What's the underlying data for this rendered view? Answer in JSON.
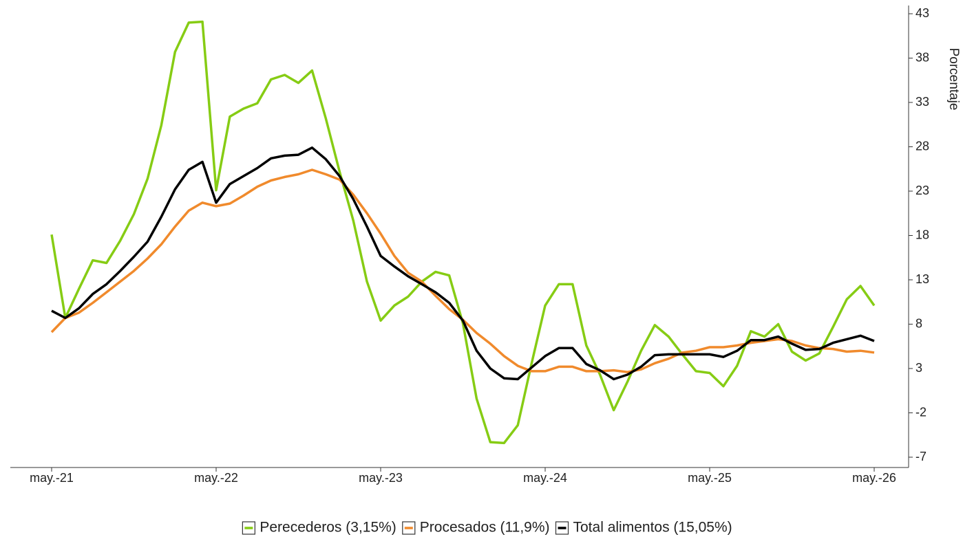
{
  "chart_data": {
    "type": "line",
    "y_axis_label": "Porcentaje",
    "categories": [
      "may.-21",
      null,
      null,
      null,
      null,
      null,
      null,
      null,
      null,
      null,
      null,
      null,
      "may.-22",
      null,
      null,
      null,
      null,
      null,
      null,
      null,
      null,
      null,
      null,
      null,
      "may.-23",
      null,
      null,
      null,
      null,
      null,
      null,
      null,
      null,
      null,
      null,
      null,
      "may.-24",
      null,
      null,
      null,
      null,
      null,
      null,
      null,
      null,
      null,
      null,
      null,
      "may.-25",
      null,
      null,
      null,
      null,
      null,
      null,
      null,
      null,
      null,
      null,
      null,
      "may.-26"
    ],
    "series": [
      {
        "name": "Perecederos (3,15%)",
        "color": "#86cc14",
        "values": [
          18.1,
          8.7,
          12.0,
          15.2,
          14.9,
          17.4,
          20.4,
          24.4,
          30.4,
          38.7,
          42.0,
          42.1,
          23.1,
          31.4,
          32.3,
          32.9,
          35.6,
          36.1,
          35.2,
          36.6,
          31.2,
          25.2,
          19.7,
          12.8,
          8.4,
          10.1,
          11.1,
          12.8,
          13.9,
          13.5,
          8.1,
          -0.4,
          -5.3,
          -5.4,
          -3.4,
          3.5,
          10.1,
          12.5,
          12.5,
          5.6,
          2.3,
          -1.7,
          1.5,
          5.0,
          7.9,
          6.6,
          4.6,
          2.7,
          2.5,
          1.0,
          3.3,
          7.2,
          6.6,
          8.0,
          4.9,
          3.9,
          4.7,
          7.7,
          10.8,
          12.3,
          10.1
        ]
      },
      {
        "name": "Procesados (11,9%)",
        "color": "#f08a2c",
        "values": [
          7.1,
          8.7,
          9.3,
          10.4,
          11.6,
          12.8,
          14.0,
          15.4,
          17.0,
          19.0,
          20.8,
          21.7,
          21.3,
          21.6,
          22.5,
          23.5,
          24.2,
          24.6,
          24.9,
          25.4,
          24.9,
          24.3,
          22.6,
          20.5,
          18.2,
          15.7,
          13.8,
          12.8,
          11.2,
          9.7,
          8.5,
          7.0,
          5.8,
          4.4,
          3.3,
          2.7,
          2.7,
          3.2,
          3.2,
          2.7,
          2.7,
          2.8,
          2.6,
          2.9,
          3.6,
          4.1,
          4.8,
          5.0,
          5.4,
          5.4,
          5.6,
          5.9,
          6.1,
          6.3,
          6.1,
          5.6,
          5.3,
          5.2,
          4.9,
          5.0,
          4.8
        ]
      },
      {
        "name": "Total alimentos (15,05%)",
        "color": "#000000",
        "values": [
          9.5,
          8.7,
          9.8,
          11.4,
          12.5,
          14.0,
          15.6,
          17.3,
          20.1,
          23.2,
          25.4,
          26.3,
          21.7,
          23.8,
          24.7,
          25.6,
          26.7,
          27.0,
          27.1,
          27.9,
          26.6,
          24.7,
          22.1,
          19.0,
          15.7,
          14.5,
          13.4,
          12.5,
          11.6,
          10.4,
          8.4,
          5.0,
          3.0,
          1.9,
          1.8,
          3.1,
          4.4,
          5.3,
          5.3,
          3.5,
          2.8,
          1.8,
          2.3,
          3.2,
          4.5,
          4.6,
          4.6,
          4.6,
          4.6,
          4.3,
          5.0,
          6.2,
          6.2,
          6.6,
          5.8,
          5.1,
          5.2,
          5.9,
          6.3,
          6.7,
          6.1
        ]
      }
    ],
    "ylim": [
      -7,
      43
    ],
    "yticks": [
      -7,
      -2,
      3,
      8,
      13,
      18,
      23,
      28,
      33,
      38,
      43
    ],
    "y_axis_side": "right",
    "grid": false,
    "legend": "bottom"
  }
}
